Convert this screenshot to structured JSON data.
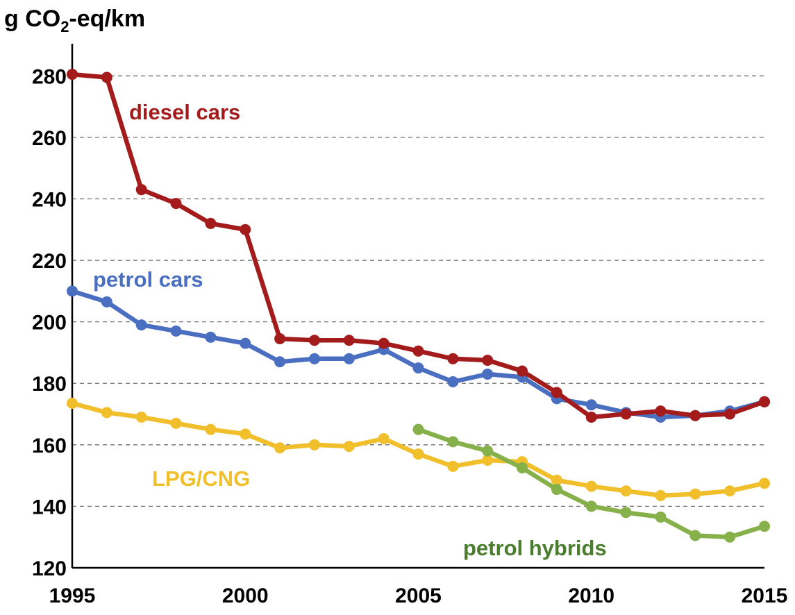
{
  "chart_data": {
    "type": "line",
    "ylabel": {
      "prefix": "g CO",
      "sub": "2",
      "suffix": "-eq/km"
    },
    "xlim": [
      1995,
      2015
    ],
    "ylim": [
      120,
      290
    ],
    "x_ticks": [
      "1995",
      "2000",
      "2005",
      "2010",
      "2015"
    ],
    "y_ticks": [
      "120",
      "140",
      "160",
      "180",
      "200",
      "220",
      "240",
      "260",
      "280"
    ],
    "grid": "horizontal dashed",
    "series": [
      {
        "name": "diesel cars",
        "color": "#a31b1b",
        "x": [
          1995,
          1996,
          1997,
          1998,
          1999,
          2000,
          2001,
          2002,
          2003,
          2004,
          2005,
          2006,
          2007,
          2008,
          2009,
          2010,
          2011,
          2012,
          2013,
          2014,
          2015
        ],
        "values": [
          280.5,
          279.5,
          243,
          238.5,
          232,
          230,
          194.5,
          194,
          194,
          193,
          190.5,
          188,
          187.5,
          184,
          177,
          169,
          170,
          171,
          169.5,
          170,
          174
        ]
      },
      {
        "name": "petrol cars",
        "color": "#4a6fc0",
        "x": [
          1995,
          1996,
          1997,
          1998,
          1999,
          2000,
          2001,
          2002,
          2003,
          2004,
          2005,
          2006,
          2007,
          2008,
          2009,
          2010,
          2011,
          2012,
          2013,
          2014,
          2015
        ],
        "values": [
          210,
          206.5,
          199,
          197,
          195,
          193,
          187,
          188,
          188,
          191,
          185,
          180.5,
          183,
          182,
          175,
          173,
          170.5,
          169,
          169.5,
          171,
          174
        ]
      },
      {
        "name": "LPG/CNG",
        "color": "#f0bf2b",
        "x": [
          1995,
          1996,
          1997,
          1998,
          1999,
          2000,
          2001,
          2002,
          2003,
          2004,
          2005,
          2006,
          2007,
          2008,
          2009,
          2010,
          2011,
          2012,
          2013,
          2014,
          2015
        ],
        "values": [
          173.5,
          170.5,
          169,
          167,
          165,
          163.5,
          159,
          160,
          159.5,
          162,
          157,
          153,
          155,
          154.5,
          148.5,
          146.5,
          145,
          143.5,
          144,
          145,
          147.5
        ]
      },
      {
        "name": "petrol hybrids",
        "color": "#86b04a",
        "label_color": "#4a7d2e",
        "x": [
          2005,
          2006,
          2007,
          2008,
          2009,
          2010,
          2011,
          2012,
          2013,
          2014,
          2015
        ],
        "values": [
          165,
          161,
          158,
          152.5,
          145.5,
          140,
          138,
          136.5,
          130.5,
          130,
          133.5
        ]
      }
    ]
  }
}
